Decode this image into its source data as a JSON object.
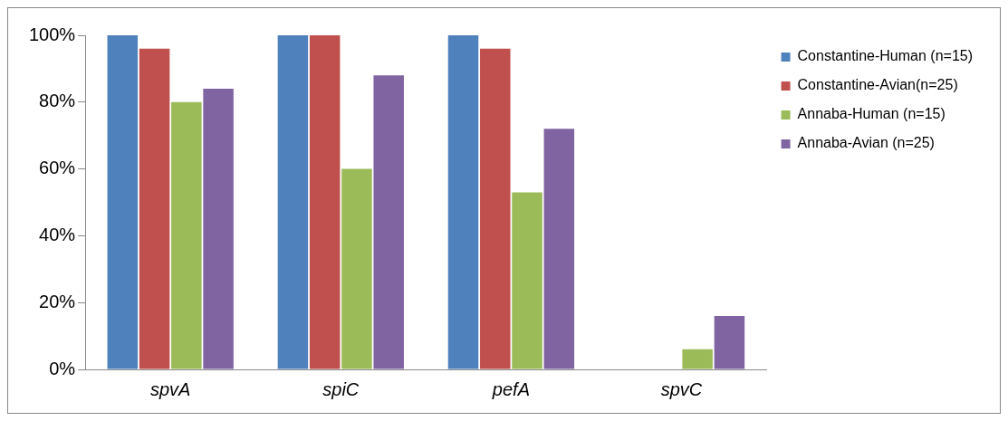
{
  "chart_data": {
    "type": "bar",
    "categories": [
      "spvA",
      "spiC",
      "pefA",
      "spvC"
    ],
    "series": [
      {
        "name": "Constantine-Human (n=15)",
        "color": "#4f81bd",
        "values": [
          100,
          100,
          100,
          0
        ]
      },
      {
        "name": "Constantine-Avian(n=25)",
        "color": "#c0504d",
        "values": [
          96,
          100,
          96,
          0
        ]
      },
      {
        "name": "Annaba-Human (n=15)",
        "color": "#9bbb59",
        "values": [
          80,
          60,
          53,
          6
        ]
      },
      {
        "name": "Annaba-Avian (n=25)",
        "color": "#8064a2",
        "values": [
          84,
          88,
          72,
          16
        ]
      }
    ],
    "ylim": [
      0,
      100
    ],
    "yticks": [
      {
        "value": 0,
        "label": "0%"
      },
      {
        "value": 20,
        "label": "20%"
      },
      {
        "value": 40,
        "label": "40%"
      },
      {
        "value": 60,
        "label": "60%"
      },
      {
        "value": 80,
        "label": "80%"
      },
      {
        "value": 100,
        "label": "100%"
      }
    ],
    "grid": false,
    "legend": "right"
  }
}
